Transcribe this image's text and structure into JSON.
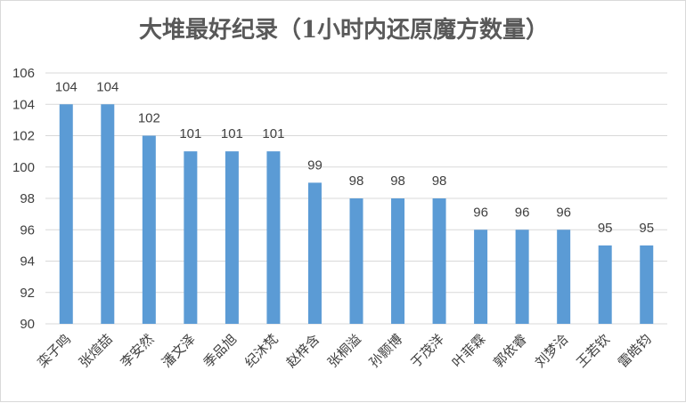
{
  "chart_data": {
    "type": "bar",
    "title": "大堆最好纪录（1小时内还原魔方数量）",
    "categories": [
      "栾子鸣",
      "张煊喆",
      "李安然",
      "潘文泽",
      "季品旭",
      "纪沐梵",
      "赵梓含",
      "张桐溢",
      "孙颢博",
      "于茂洋",
      "叶菲霖",
      "郭依睿",
      "刘梦洽",
      "王若钦",
      "雷皓钧"
    ],
    "values": [
      104,
      104,
      102,
      101,
      101,
      101,
      99,
      98,
      98,
      98,
      96,
      96,
      96,
      95,
      95
    ],
    "ylim": [
      90,
      106
    ],
    "yticks": [
      90,
      92,
      94,
      96,
      98,
      100,
      102,
      104,
      106
    ],
    "grid": true,
    "legend": "none",
    "bar_color": "#5b9bd5",
    "grid_color": "#d9d9d9"
  }
}
